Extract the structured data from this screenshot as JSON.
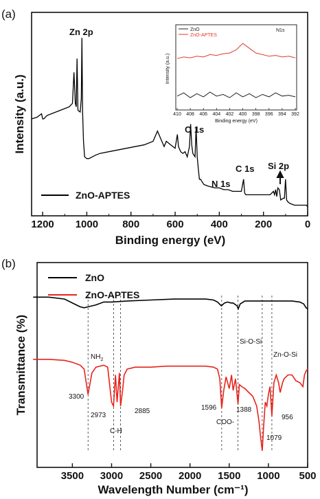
{
  "chart_data": [
    {
      "panel": "(a)",
      "type": "line",
      "xlabel": "Binding energy (eV)",
      "ylabel": "Intensity (a.u.)",
      "xlim": [
        1250,
        0
      ],
      "x_reversed": true,
      "xticks": [
        "1200",
        "1000",
        "800",
        "600",
        "400",
        "200",
        "0"
      ],
      "xtick_values": [
        1200,
        1000,
        800,
        600,
        400,
        200,
        0
      ],
      "ylim": [
        0,
        100
      ],
      "grid": false,
      "legend_position": "bottom-left",
      "series": [
        {
          "name": "ZnO-APTES",
          "color": "#000000",
          "x": [
            1250,
            1225,
            1205,
            1200,
            1195,
            1180,
            1160,
            1140,
            1120,
            1100,
            1080,
            1065,
            1058,
            1052,
            1048,
            1044,
            1040,
            1030,
            1025,
            1022,
            1019,
            1015,
            1010,
            1000,
            990,
            975,
            960,
            940,
            900,
            860,
            820,
            780,
            740,
            700,
            680,
            670,
            660,
            650,
            640,
            620,
            600,
            590,
            585,
            575,
            565,
            555,
            545,
            535,
            530,
            525,
            520,
            510,
            505,
            500,
            495,
            490,
            485,
            480,
            470,
            450,
            420,
            400,
            380,
            360,
            340,
            320,
            300,
            290,
            285,
            280,
            275,
            250,
            200,
            170,
            155,
            150,
            145,
            140,
            135,
            128,
            122,
            110,
            105,
            100,
            95,
            90,
            80,
            60,
            40,
            20,
            10,
            5,
            0
          ],
          "y": [
            53,
            54,
            56,
            53,
            53,
            55,
            56,
            57,
            58,
            59,
            60,
            62,
            80,
            62,
            60,
            88,
            58,
            57,
            65,
            100,
            57,
            40,
            31,
            30,
            30,
            31,
            32,
            33,
            34,
            35,
            36,
            37,
            38,
            40,
            46,
            43,
            40,
            37,
            40,
            38,
            36,
            44,
            37,
            34,
            33,
            34,
            31,
            37,
            50,
            38,
            33,
            31,
            48,
            31,
            24,
            18,
            18,
            17,
            15,
            14,
            13,
            13,
            12,
            12,
            11,
            11,
            11,
            18,
            10,
            9,
            9,
            9,
            9,
            9,
            11,
            9,
            12,
            8,
            13,
            12,
            6,
            7,
            7,
            18,
            6,
            5,
            4,
            3,
            3,
            3,
            3,
            3,
            2
          ]
        }
      ],
      "annotations": [
        "Zn 2p",
        "O 1s",
        "C 1s",
        "N 1s",
        "Si 2p"
      ],
      "inset": {
        "type": "line",
        "xlabel": "Binding energy (eV)",
        "ylabel": "Intensity (a.u.)",
        "label": "N1s",
        "xticks": [
          "410",
          "408",
          "406",
          "404",
          "402",
          "400",
          "398",
          "396",
          "394",
          "392"
        ],
        "xlim": [
          410,
          392
        ],
        "series": [
          {
            "name": "ZnO",
            "color": "#222222",
            "x": [
              410,
              409,
              408,
              407,
              406,
              405,
              404,
              403,
              402,
              401,
              400,
              399,
              398,
              397,
              396,
              395,
              394,
              393,
              392
            ],
            "y": [
              14,
              18,
              12,
              17,
              13,
              19,
              14,
              16,
              12,
              18,
              13,
              17,
              12,
              16,
              13,
              18,
              14,
              15,
              13
            ]
          },
          {
            "name": "ZnO-APTES",
            "color": "#e03a2a",
            "x": [
              410,
              409,
              408,
              407,
              406,
              405,
              404,
              403,
              402,
              401,
              400,
              399,
              398,
              397,
              396,
              395,
              394,
              393,
              392
            ],
            "y": [
              61,
              63,
              62,
              64,
              63,
              66,
              65,
              67,
              68,
              72,
              80,
              74,
              68,
              66,
              64,
              65,
              63,
              64,
              62
            ]
          }
        ]
      }
    },
    {
      "panel": "(b)",
      "type": "line",
      "xlabel": "Wavelength Number (cm⁻¹)",
      "ylabel": "Transmittance (%)",
      "xlim": [
        4000,
        500
      ],
      "x_reversed": true,
      "xticks": [
        "3500",
        "3000",
        "2500",
        "2000",
        "1500",
        "1000",
        "500"
      ],
      "xtick_values": [
        3500,
        3000,
        2500,
        2000,
        1500,
        1000,
        500
      ],
      "ylim": [
        0,
        100
      ],
      "grid": false,
      "legend_position": "top-left",
      "series": [
        {
          "name": "ZnO",
          "color": "#000000",
          "x": [
            4000,
            3800,
            3600,
            3450,
            3400,
            3350,
            3300,
            3200,
            3100,
            3000,
            2800,
            2500,
            2200,
            2000,
            1800,
            1700,
            1650,
            1600,
            1560,
            1520,
            1480,
            1450,
            1400,
            1385,
            1360,
            1300,
            1200,
            1100,
            1000,
            900,
            800,
            700,
            600,
            550,
            520,
            500
          ],
          "y": [
            84,
            84,
            83,
            80,
            79,
            78.5,
            79,
            80,
            81.5,
            81.5,
            82,
            82.5,
            83,
            83,
            83,
            82.5,
            81.5,
            79.5,
            81,
            81.5,
            81,
            81,
            79.5,
            78,
            80.5,
            82,
            82,
            82,
            82,
            82,
            82,
            82,
            81.5,
            80.5,
            78.5,
            78
          ]
        },
        {
          "name": "ZnO-APTES",
          "color": "#e8231c",
          "x": [
            4000,
            3800,
            3600,
            3500,
            3400,
            3350,
            3300,
            3250,
            3200,
            3100,
            3050,
            3000,
            2975,
            2950,
            2930,
            2900,
            2885,
            2860,
            2840,
            2800,
            2700,
            2500,
            2300,
            2100,
            1900,
            1800,
            1700,
            1650,
            1620,
            1596,
            1570,
            1540,
            1500,
            1470,
            1450,
            1420,
            1400,
            1388,
            1370,
            1340,
            1300,
            1250,
            1200,
            1150,
            1120,
            1100,
            1079,
            1060,
            1040,
            1020,
            1000,
            980,
            956,
            930,
            900,
            870,
            850,
            820,
            800,
            750,
            700,
            650,
            600,
            560,
            540,
            520,
            500
          ],
          "y": [
            52,
            52,
            51.5,
            50.5,
            49,
            47,
            34,
            45,
            48,
            49,
            48,
            30,
            28,
            44,
            30,
            45,
            28,
            36,
            44,
            47,
            48,
            48,
            48.5,
            48.5,
            48.5,
            48.5,
            48,
            47,
            42,
            27,
            36,
            43,
            37,
            44,
            36,
            42,
            34,
            29,
            39,
            38,
            37,
            35,
            33,
            28,
            20,
            12,
            5,
            18,
            30,
            28,
            34,
            38,
            23,
            40,
            44,
            40,
            35,
            40,
            42,
            44,
            44,
            41,
            40,
            38,
            44,
            46,
            47
          ]
        }
      ],
      "annotations": [
        {
          "text": "NH",
          "sub": "2",
          "x": 3300
        },
        {
          "text": "3300",
          "x": 3300
        },
        {
          "text": "2973",
          "x": 2973
        },
        {
          "text": "2885",
          "x": 2885
        },
        {
          "text": "C-H",
          "x": 2930
        },
        {
          "text": "1596",
          "x": 1596
        },
        {
          "text": "COO-",
          "x": 1596
        },
        {
          "text": "1388",
          "x": 1388
        },
        {
          "text": "Si-O-Si",
          "x": 1079
        },
        {
          "text": "1079",
          "x": 1079
        },
        {
          "text": "Zn-O-Si",
          "x": 956
        },
        {
          "text": "956",
          "x": 956
        }
      ],
      "dashed_markers": [
        3300,
        2973,
        2885,
        1596,
        1388,
        1079,
        956
      ]
    }
  ]
}
